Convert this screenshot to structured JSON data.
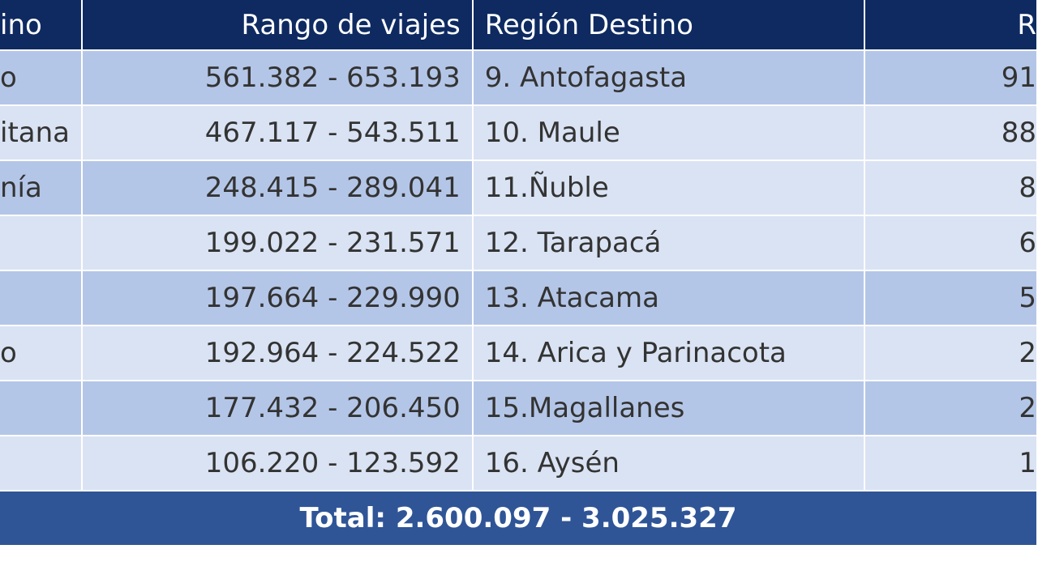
{
  "table": {
    "headers": {
      "origin_region": "ino",
      "trip_range": "Rango de viajes",
      "destination_region": "Región Destino",
      "destination_range": "R"
    },
    "rows": [
      {
        "origin": "o",
        "range": "561.382 - 653.193",
        "dest": "9. Antofagasta",
        "dest_range": "91"
      },
      {
        "origin": "itana",
        "range": "467.117 - 543.511",
        "dest": "10. Maule",
        "dest_range": "88"
      },
      {
        "origin": "nía",
        "range": "248.415 - 289.041",
        "dest": "11.Ñuble",
        "dest_range": "8"
      },
      {
        "origin": "",
        "range": "199.022 - 231.571",
        "dest": "12. Tarapacá",
        "dest_range": "6"
      },
      {
        "origin": "",
        "range": "197.664 - 229.990",
        "dest": "13. Atacama",
        "dest_range": "5"
      },
      {
        "origin": "o",
        "range": "192.964 - 224.522",
        "dest": "14. Arica y Parinacota",
        "dest_range": "2"
      },
      {
        "origin": "",
        "range": "177.432 - 206.450",
        "dest": "15.Magallanes",
        "dest_range": "2"
      },
      {
        "origin": "",
        "range": "106.220 - 123.592",
        "dest": "16. Aysén",
        "dest_range": "1"
      }
    ],
    "total": "Total:  2.600.097 - 3.025.327"
  },
  "colors": {
    "header_bg": "#0e2a61",
    "row_dark": "#b4c6e7",
    "row_light": "#dae3f3",
    "total_bg": "#2f5597"
  }
}
